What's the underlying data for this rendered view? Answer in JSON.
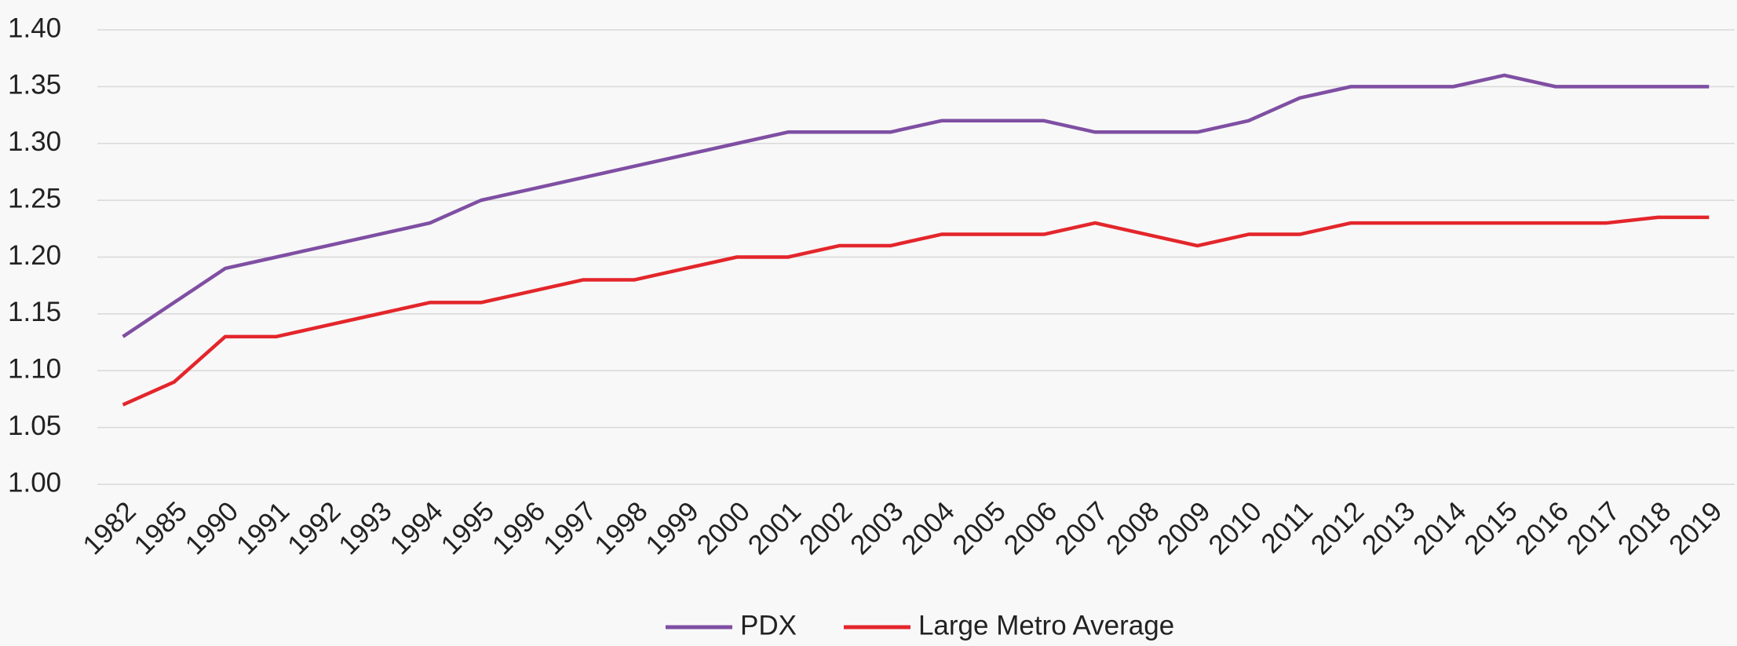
{
  "chart_data": {
    "type": "line",
    "categories": [
      "1982",
      "1985",
      "1990",
      "1991",
      "1992",
      "1993",
      "1994",
      "1995",
      "1996",
      "1997",
      "1998",
      "1999",
      "2000",
      "2001",
      "2002",
      "2003",
      "2004",
      "2005",
      "2006",
      "2007",
      "2008",
      "2009",
      "2010",
      "2011",
      "2012",
      "2013",
      "2014",
      "2015",
      "2016",
      "2017",
      "2018",
      "2019"
    ],
    "series": [
      {
        "name": "PDX",
        "color": "#7f4fa3",
        "values": [
          1.13,
          1.16,
          1.19,
          1.2,
          1.21,
          1.22,
          1.23,
          1.25,
          1.26,
          1.27,
          1.28,
          1.29,
          1.3,
          1.31,
          1.31,
          1.31,
          1.32,
          1.32,
          1.32,
          1.31,
          1.31,
          1.31,
          1.32,
          1.34,
          1.35,
          1.35,
          1.35,
          1.36,
          1.35,
          1.35,
          1.35,
          1.35
        ]
      },
      {
        "name": "Large Metro Average",
        "color": "#e3262b",
        "values": [
          1.07,
          1.09,
          1.13,
          1.13,
          1.14,
          1.15,
          1.16,
          1.16,
          1.17,
          1.18,
          1.18,
          1.19,
          1.2,
          1.2,
          1.21,
          1.21,
          1.22,
          1.22,
          1.22,
          1.23,
          1.22,
          1.21,
          1.22,
          1.22,
          1.23,
          1.23,
          1.23,
          1.23,
          1.23,
          1.23,
          1.235,
          1.235
        ]
      }
    ],
    "ylim": [
      1.0,
      1.4
    ],
    "yticks": [
      {
        "value": 1.0,
        "label": "1.00"
      },
      {
        "value": 1.05,
        "label": "1.05"
      },
      {
        "value": 1.1,
        "label": "1.10"
      },
      {
        "value": 1.15,
        "label": "1.15"
      },
      {
        "value": 1.2,
        "label": "1.20"
      },
      {
        "value": 1.25,
        "label": "1.25"
      },
      {
        "value": 1.3,
        "label": "1.30"
      },
      {
        "value": 1.35,
        "label": "1.35"
      },
      {
        "value": 1.4,
        "label": "1.40"
      }
    ],
    "grid": true,
    "legend": "bottom"
  }
}
